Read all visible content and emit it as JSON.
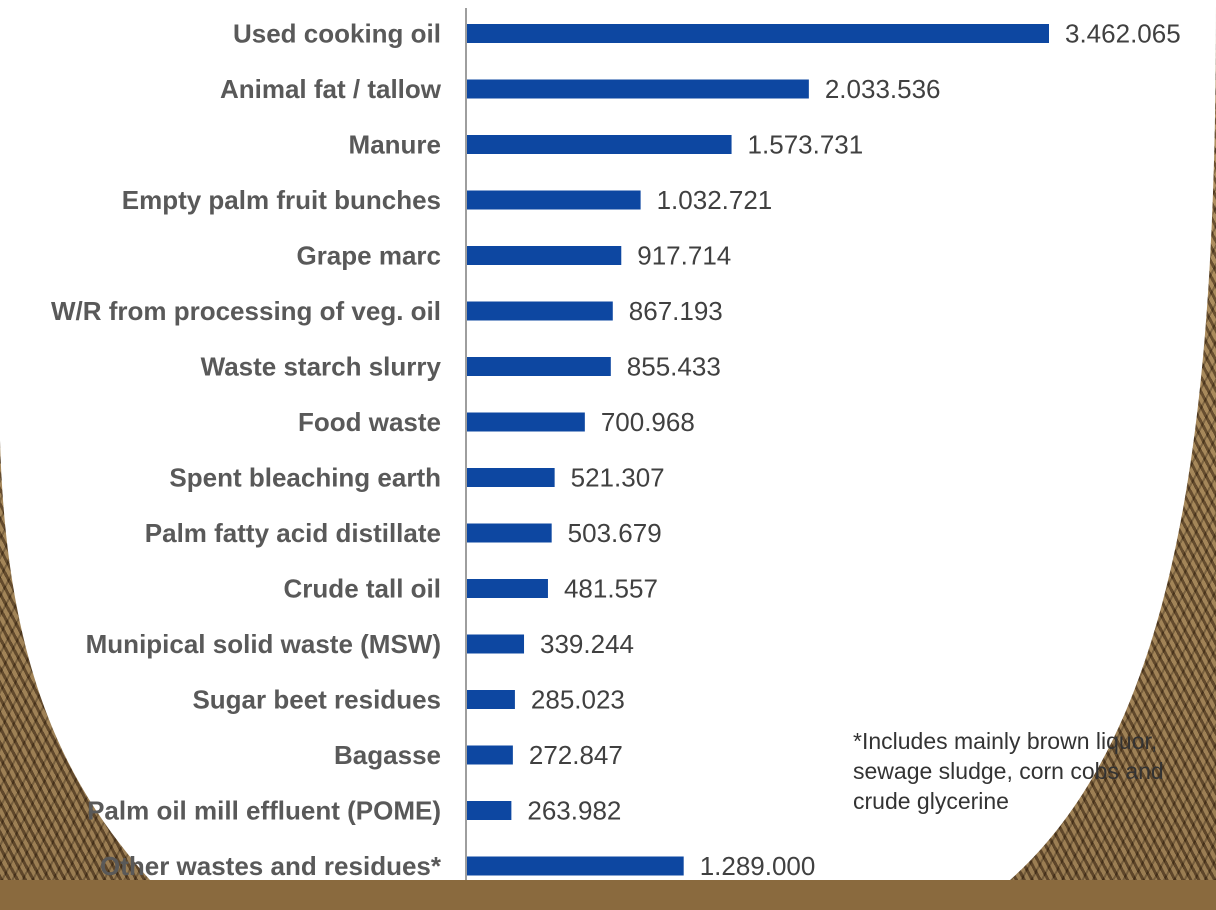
{
  "chart_data": {
    "type": "bar",
    "orientation": "horizontal",
    "categories": [
      "Used cooking oil",
      "Animal fat / tallow",
      "Manure",
      "Empty palm fruit bunches",
      "Grape marc",
      "W/R from processing of veg. oil",
      "Waste starch slurry",
      "Food waste",
      "Spent bleaching earth",
      "Palm fatty acid distillate",
      "Crude tall oil",
      "Munipical solid waste (MSW)",
      "Sugar beet residues",
      "Bagasse",
      "Palm oil mill effluent (POME)",
      "Other wastes and residues*"
    ],
    "values": [
      3462065,
      2033536,
      1573731,
      1032721,
      917714,
      867193,
      855433,
      700968,
      521307,
      503679,
      481557,
      339244,
      285023,
      272847,
      263982,
      1289000
    ],
    "value_labels": [
      "3.462.065",
      "2.033.536",
      "1.573.731",
      "1.032.721",
      "917.714",
      "867.193",
      "855.433",
      "700.968",
      "521.307",
      "503.679",
      "481.557",
      "339.244",
      "285.023",
      "272.847",
      "263.982",
      "1.289.000"
    ],
    "bar_color": "#0d47a1",
    "xlim": [
      0,
      3462065
    ],
    "grid": false,
    "legend": "none"
  },
  "footnote": "*Includes mainly brown liquor, sewage sludge, corn cobs and crude glycerine"
}
